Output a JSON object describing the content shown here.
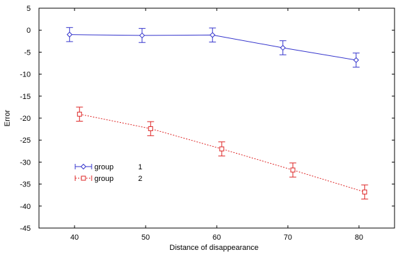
{
  "chart_data": {
    "type": "line",
    "title": "",
    "xlabel": "Distance of disappearance",
    "ylabel": "Error",
    "xlim": [
      35,
      85
    ],
    "ylim": [
      -45,
      5
    ],
    "xticks": [
      40,
      50,
      60,
      70,
      80
    ],
    "yticks": [
      5,
      0,
      -5,
      -10,
      -15,
      -20,
      -25,
      -30,
      -35,
      -40,
      -45
    ],
    "grid": false,
    "legend_position": "middle-left",
    "series": [
      {
        "name": "group",
        "legend_value": "1",
        "color": "#3333cc",
        "line_style": "solid",
        "marker": "diamond",
        "points": [
          {
            "x": 39.3,
            "y": -1.0,
            "err": 1.6
          },
          {
            "x": 49.5,
            "y": -1.2,
            "err": 1.6
          },
          {
            "x": 59.4,
            "y": -1.1,
            "err": 1.6
          },
          {
            "x": 69.3,
            "y": -4.0,
            "err": 1.6
          },
          {
            "x": 79.6,
            "y": -6.8,
            "err": 1.6
          }
        ]
      },
      {
        "name": "group",
        "legend_value": "2",
        "color": "#dd2222",
        "line_style": "dotted",
        "marker": "square",
        "points": [
          {
            "x": 40.7,
            "y": -19.1,
            "err": 1.6
          },
          {
            "x": 50.7,
            "y": -22.4,
            "err": 1.6
          },
          {
            "x": 60.7,
            "y": -27.0,
            "err": 1.6
          },
          {
            "x": 70.7,
            "y": -31.8,
            "err": 1.6
          },
          {
            "x": 80.8,
            "y": -36.8,
            "err": 1.6
          }
        ]
      }
    ]
  }
}
